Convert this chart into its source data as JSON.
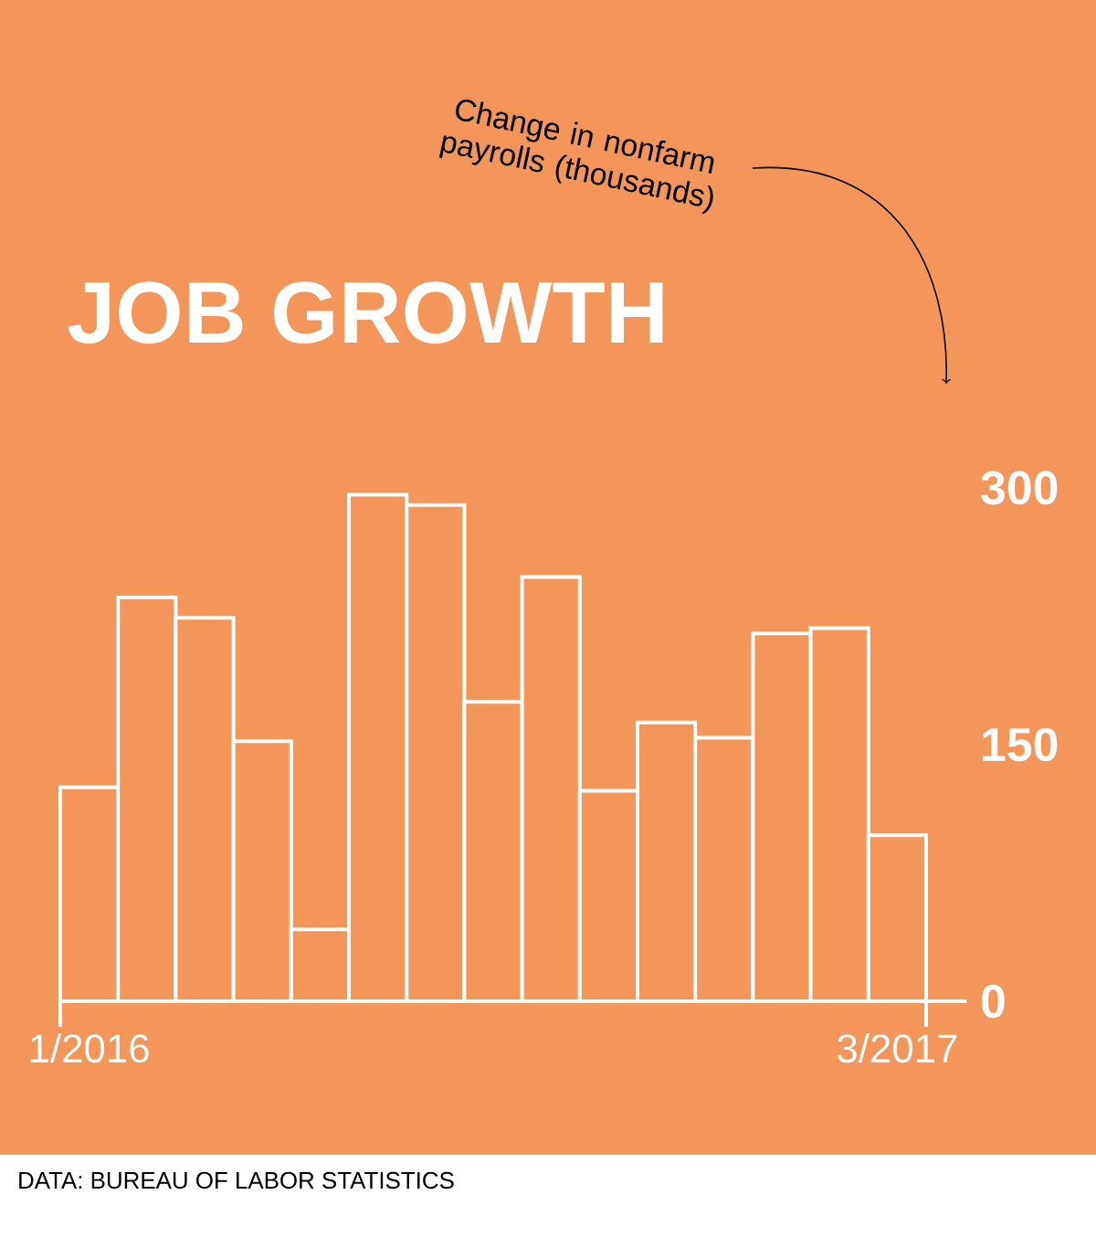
{
  "chart_data": {
    "type": "bar",
    "title": "JOB GROWTH",
    "categories": [
      "1/2016",
      null,
      null,
      null,
      null,
      null,
      null,
      null,
      null,
      null,
      null,
      null,
      null,
      null,
      "3/2017"
    ],
    "values": [
      125,
      236,
      224,
      152,
      42,
      296,
      290,
      175,
      248,
      123,
      163,
      154,
      215,
      218,
      97
    ],
    "color": "#ffffff",
    "ylim": [
      0,
      300
    ],
    "yticks": [
      0,
      150,
      300
    ],
    "grid": false,
    "annotations": [
      "Change in nonfarm payrolls (thousands)",
      "DATA: BUREAU OF LABOR STATISTICS"
    ]
  }
}
